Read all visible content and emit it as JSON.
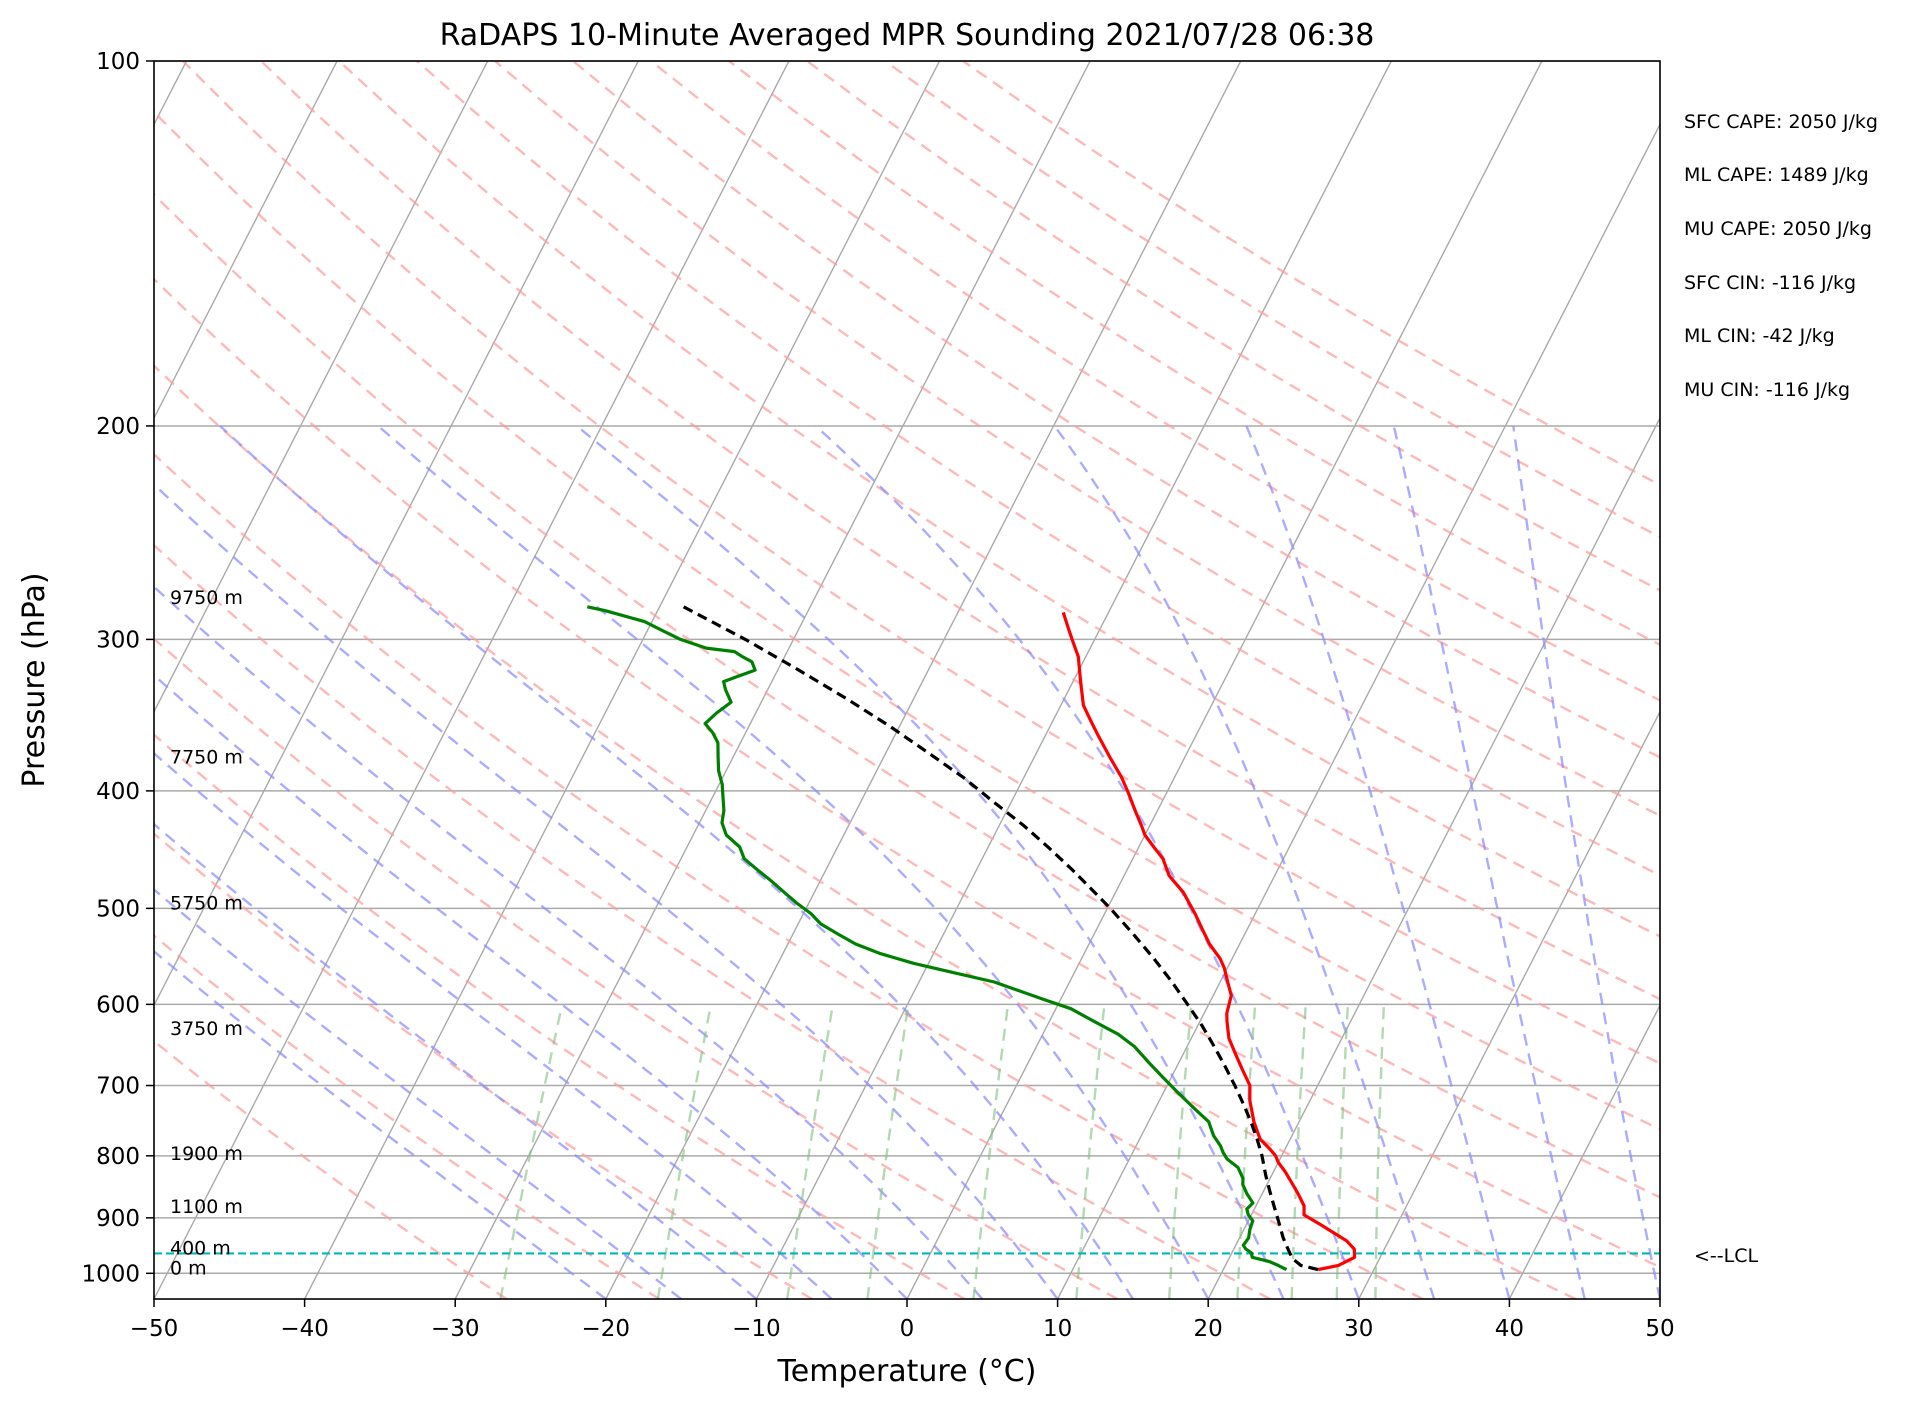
{
  "chart_data": {
    "type": "line",
    "title": "RaDAPS 10-Minute Averaged MPR Sounding 2021/07/28 06:38",
    "xlabel": "Temperature (°C)",
    "ylabel": "Pressure (hPa)",
    "xlim": [
      -50,
      50
    ],
    "ylim": [
      1050,
      100
    ],
    "y_scale": "log",
    "x_ticks": [
      -50,
      -40,
      -30,
      -20,
      -10,
      0,
      10,
      20,
      30,
      40,
      50
    ],
    "x_tick_labels": [
      "−50",
      "−40",
      "−30",
      "−20",
      "−10",
      "0",
      "10",
      "20",
      "30",
      "40",
      "50"
    ],
    "y_ticks": [
      100,
      200,
      300,
      400,
      500,
      600,
      700,
      800,
      900,
      1000
    ],
    "y_tick_labels": [
      "100",
      "200",
      "300",
      "400",
      "500",
      "600",
      "700",
      "800",
      "900",
      "1000"
    ],
    "grid": true,
    "skew_isotherms": true,
    "series": [
      {
        "name": "",
        "color": "#ff0000",
        "style": "solid",
        "points": [
          [
            26.3,
            993
          ],
          [
            27.5,
            985
          ],
          [
            28.3,
            970
          ],
          [
            28,
            955
          ],
          [
            27.2,
            940
          ],
          [
            26,
            925
          ],
          [
            24.8,
            910
          ],
          [
            23.5,
            895
          ],
          [
            23.2,
            880
          ],
          [
            22.4,
            860
          ],
          [
            21.5,
            840
          ],
          [
            20.8,
            825
          ],
          [
            20,
            810
          ],
          [
            19.6,
            800
          ],
          [
            19,
            790
          ],
          [
            18,
            775
          ],
          [
            17,
            750
          ],
          [
            16,
            720
          ],
          [
            15.5,
            700
          ],
          [
            14.5,
            680
          ],
          [
            13.5,
            660
          ],
          [
            12.5,
            640
          ],
          [
            11.8,
            620
          ],
          [
            11.5,
            610
          ],
          [
            11.2,
            590
          ],
          [
            10.5,
            575
          ],
          [
            9.8,
            560
          ],
          [
            9.2,
            550
          ],
          [
            8,
            535
          ],
          [
            7,
            520
          ],
          [
            6,
            505
          ],
          [
            4.5,
            485
          ],
          [
            3,
            470
          ],
          [
            2,
            455
          ],
          [
            1,
            445
          ],
          [
            0,
            435
          ],
          [
            -0.5,
            428
          ],
          [
            -1.5,
            415
          ],
          [
            -2.5,
            402
          ],
          [
            -3.5,
            390
          ],
          [
            -5,
            375
          ],
          [
            -6.5,
            360
          ],
          [
            -7.5,
            350
          ],
          [
            -8.5,
            340
          ],
          [
            -9.5,
            325
          ],
          [
            -10.5,
            310
          ],
          [
            -11.5,
            300
          ],
          [
            -12,
            295
          ],
          [
            -12.7,
            288
          ],
          [
            -13,
            285
          ]
        ]
      },
      {
        "name": "",
        "color": "#008000",
        "style": "solid",
        "points": [
          [
            24.2,
            993
          ],
          [
            23.5,
            985
          ],
          [
            22.8,
            978
          ],
          [
            21.5,
            970
          ],
          [
            21.3,
            962
          ],
          [
            20.8,
            955
          ],
          [
            20.5,
            948
          ],
          [
            20.6,
            935
          ],
          [
            20.4,
            920
          ],
          [
            20.3,
            905
          ],
          [
            19.8,
            895
          ],
          [
            19.5,
            885
          ],
          [
            19.7,
            875
          ],
          [
            19,
            860
          ],
          [
            18.4,
            845
          ],
          [
            18.2,
            835
          ],
          [
            17.5,
            818
          ],
          [
            16.5,
            805
          ],
          [
            16,
            795
          ],
          [
            15.6,
            785
          ],
          [
            14.8,
            770
          ],
          [
            14,
            750
          ],
          [
            12.5,
            730
          ],
          [
            11,
            710
          ],
          [
            9.5,
            690
          ],
          [
            8,
            670
          ],
          [
            6.5,
            650
          ],
          [
            5,
            635
          ],
          [
            3,
            620
          ],
          [
            1,
            605
          ],
          [
            -1,
            595
          ],
          [
            -3,
            585
          ],
          [
            -5,
            575
          ],
          [
            -8,
            565
          ],
          [
            -11,
            555
          ],
          [
            -13.5,
            545
          ],
          [
            -15.5,
            535
          ],
          [
            -17,
            525
          ],
          [
            -18.5,
            515
          ],
          [
            -19.5,
            505
          ],
          [
            -20.8,
            495
          ],
          [
            -22,
            485
          ],
          [
            -23.2,
            475
          ],
          [
            -24.5,
            465
          ],
          [
            -25.8,
            455
          ],
          [
            -26.5,
            445
          ],
          [
            -27.8,
            435
          ],
          [
            -28.5,
            425
          ],
          [
            -28.8,
            415
          ],
          [
            -29.3,
            405
          ],
          [
            -29.8,
            395
          ],
          [
            -30.5,
            385
          ],
          [
            -31,
            375
          ],
          [
            -31.5,
            365
          ],
          [
            -32.2,
            358
          ],
          [
            -33,
            352
          ],
          [
            -32.6,
            345
          ],
          [
            -32,
            338
          ],
          [
            -32.8,
            330
          ],
          [
            -33.2,
            325
          ],
          [
            -32.5,
            322
          ],
          [
            -31.5,
            318
          ],
          [
            -32,
            313
          ],
          [
            -32.8,
            310
          ],
          [
            -33.5,
            307
          ],
          [
            -35.5,
            305
          ],
          [
            -37.5,
            300
          ],
          [
            -39,
            295
          ],
          [
            -40.5,
            290
          ],
          [
            -42,
            287
          ],
          [
            -43.5,
            284
          ],
          [
            -44.8,
            282
          ]
        ]
      },
      {
        "name": "",
        "color": "#000000",
        "style": "dashed",
        "points": [
          [
            26.3,
            993
          ],
          [
            25,
            985
          ],
          [
            24.2,
            972
          ],
          [
            23.6,
            955
          ],
          [
            22.9,
            935
          ],
          [
            22,
            905
          ],
          [
            21.2,
            880
          ],
          [
            20.4,
            855
          ],
          [
            19.6,
            830
          ],
          [
            18.7,
            800
          ],
          [
            17.8,
            775
          ],
          [
            16.8,
            750
          ],
          [
            15.7,
            725
          ],
          [
            14.5,
            700
          ],
          [
            13.2,
            675
          ],
          [
            11.8,
            650
          ],
          [
            10.3,
            625
          ],
          [
            8.6,
            600
          ],
          [
            6.8,
            575
          ],
          [
            4.8,
            550
          ],
          [
            2.6,
            525
          ],
          [
            0.2,
            500
          ],
          [
            -1.5,
            484
          ],
          [
            -3.6,
            465
          ],
          [
            -5.9,
            446
          ],
          [
            -8.4,
            427
          ],
          [
            -11.1,
            409
          ],
          [
            -14,
            390
          ],
          [
            -17.2,
            372
          ],
          [
            -20.6,
            354
          ],
          [
            -24.4,
            336
          ],
          [
            -28.6,
            318
          ],
          [
            -33.2,
            300
          ],
          [
            -38.4,
            282
          ]
        ]
      }
    ],
    "lcl": {
      "pressure": 963,
      "label": "<--LCL"
    },
    "height_labels": [
      {
        "text": "0 m",
        "pressure": 1000
      },
      {
        "text": "400 m",
        "pressure": 963
      },
      {
        "text": "1100 m",
        "pressure": 890
      },
      {
        "text": "1900 m",
        "pressure": 805
      },
      {
        "text": "3750 m",
        "pressure": 635
      },
      {
        "text": "5750 m",
        "pressure": 500
      },
      {
        "text": "7750 m",
        "pressure": 379
      },
      {
        "text": "9750 m",
        "pressure": 280
      }
    ],
    "annotations": [
      "SFC CAPE: 2050 J/kg",
      "ML CAPE: 1489 J/kg",
      "MU CAPE: 2050 J/kg",
      "SFC CIN: -116 J/kg",
      "ML CIN: -42 J/kg",
      "MU CIN: -116 J/kg"
    ],
    "colors": {
      "temperature": "#ff0000",
      "dewpoint": "#008000",
      "parcel": "#000000",
      "lcl": "#00b8b8",
      "dry_adiabat": "#ff9a9a",
      "moist_adiabat": "#8888ff",
      "mixing_ratio": "#7fbf7f",
      "isotherm": "#aaaaaa"
    }
  }
}
